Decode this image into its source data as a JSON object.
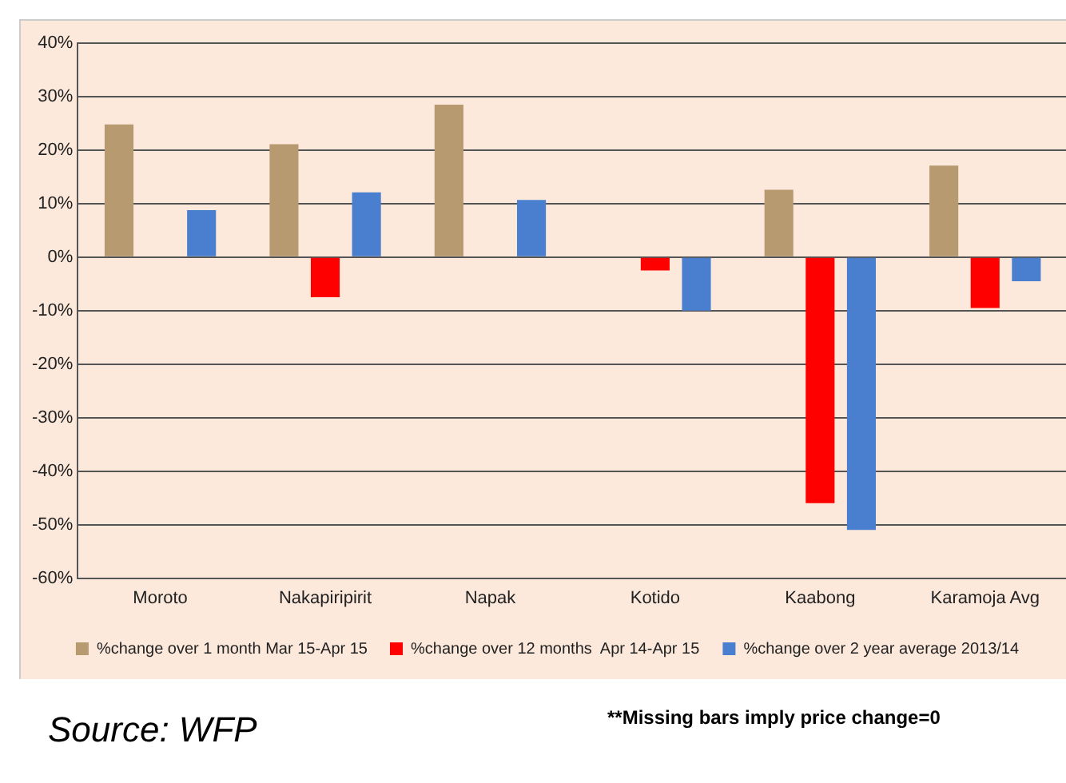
{
  "chart_data": {
    "type": "bar",
    "categories": [
      "Moroto",
      "Nakapiripirit",
      "Napak",
      "Kotido",
      "Kaabong",
      "Karamoja Avg"
    ],
    "series": [
      {
        "name": "%change over 1 month Mar 15-Apr 15",
        "color": "#b89a70",
        "values": [
          24.8,
          21.1,
          28.5,
          0,
          12.6,
          17.1
        ]
      },
      {
        "name": "%change over 12 months  Apr 14-Apr 15",
        "color": "#ff0000",
        "values": [
          0,
          -7.5,
          0,
          -2.5,
          -46,
          -9.5
        ]
      },
      {
        "name": "%change over 2 year average 2013/14",
        "color": "#4a7fd0",
        "values": [
          8.8,
          12.1,
          10.7,
          -10,
          -51,
          -4.5
        ]
      }
    ],
    "ylim": [
      -60,
      40
    ],
    "yticks": [
      {
        "value": -60,
        "label": "-60%"
      },
      {
        "value": -50,
        "label": "-50%"
      },
      {
        "value": -40,
        "label": "-40%"
      },
      {
        "value": -30,
        "label": "-30%"
      },
      {
        "value": -20,
        "label": "-20%"
      },
      {
        "value": -10,
        "label": "-10%"
      },
      {
        "value": 0,
        "label": "0%"
      },
      {
        "value": 10,
        "label": "10%"
      },
      {
        "value": 20,
        "label": "20%"
      },
      {
        "value": 30,
        "label": "30%"
      },
      {
        "value": 40,
        "label": "40%"
      }
    ],
    "grid": "y",
    "legend": "bottom",
    "annotations": [
      "Source: WFP",
      "**Missing bars imply price change=0"
    ]
  }
}
